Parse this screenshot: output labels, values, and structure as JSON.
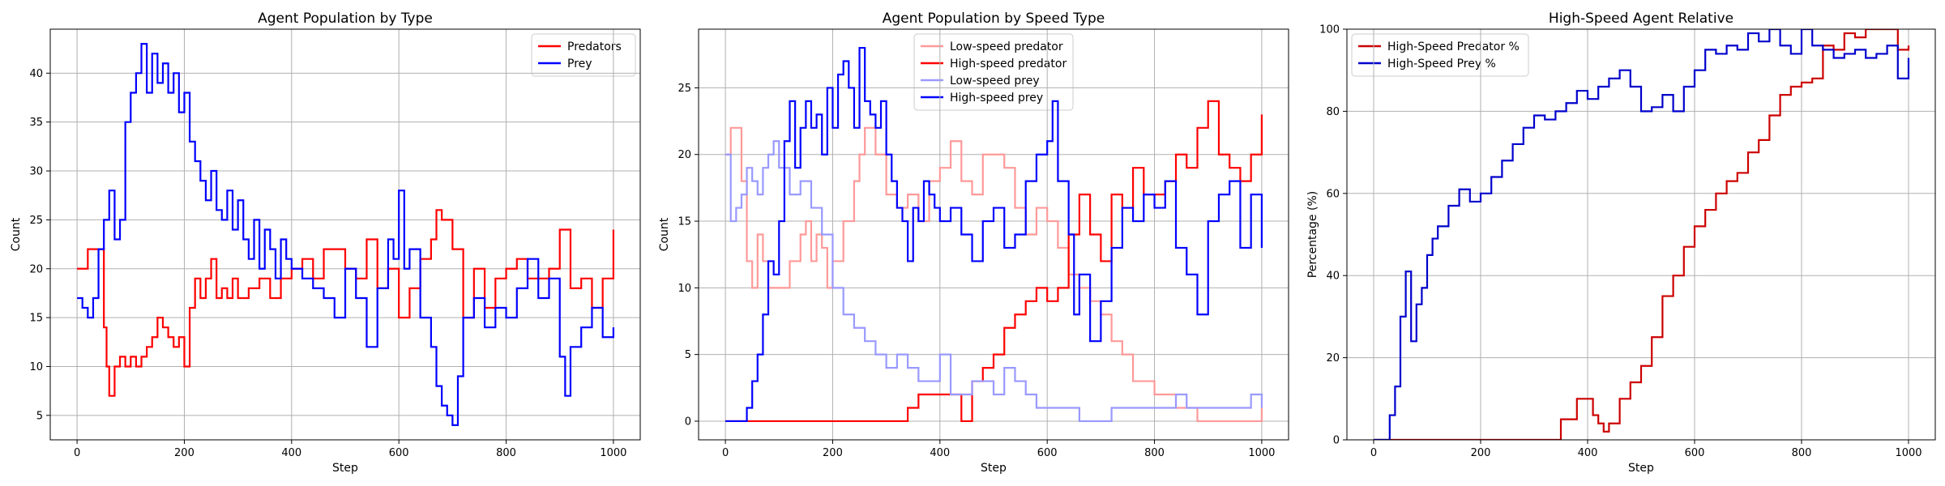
{
  "chart_data": [
    {
      "type": "line",
      "title": "Agent Population by Type",
      "xlabel": "Step",
      "ylabel": "Count",
      "xlim": [
        -50,
        1050
      ],
      "ylim": [
        2.5,
        44.5
      ],
      "xticks": [
        0,
        200,
        400,
        600,
        800,
        1000
      ],
      "yticks": [
        5,
        10,
        15,
        20,
        25,
        30,
        35,
        40
      ],
      "grid": true,
      "legend_position": "top-right",
      "series": [
        {
          "name": "Predators",
          "color": "#ff0000",
          "x": [
            0,
            20,
            40,
            50,
            55,
            60,
            70,
            80,
            90,
            100,
            110,
            120,
            130,
            140,
            150,
            160,
            170,
            180,
            190,
            200,
            210,
            220,
            230,
            240,
            250,
            260,
            270,
            280,
            290,
            300,
            320,
            340,
            360,
            380,
            400,
            420,
            440,
            460,
            480,
            500,
            520,
            540,
            560,
            580,
            600,
            620,
            640,
            660,
            670,
            680,
            700,
            720,
            740,
            760,
            780,
            800,
            820,
            840,
            860,
            880,
            900,
            920,
            940,
            960,
            980,
            1000
          ],
          "y": [
            20,
            22,
            22,
            14,
            10,
            7,
            10,
            11,
            10,
            11,
            10,
            11,
            12,
            13,
            15,
            14,
            13,
            12,
            13,
            10,
            16,
            19,
            17,
            19,
            21,
            17,
            18,
            17,
            19,
            17,
            18,
            19,
            17,
            19,
            20,
            21,
            19,
            22,
            22,
            20,
            19,
            23,
            18,
            20,
            15,
            18,
            21,
            23,
            26,
            25,
            22,
            15,
            20,
            16,
            19,
            20,
            21,
            19,
            19,
            20,
            24,
            18,
            19,
            16,
            19,
            24
          ]
        },
        {
          "name": "Prey",
          "color": "#0000ff",
          "x": [
            0,
            10,
            20,
            30,
            40,
            50,
            60,
            70,
            80,
            90,
            100,
            110,
            120,
            130,
            140,
            150,
            160,
            170,
            180,
            190,
            200,
            210,
            220,
            230,
            240,
            250,
            260,
            270,
            280,
            290,
            300,
            310,
            320,
            330,
            340,
            350,
            360,
            370,
            380,
            390,
            400,
            420,
            440,
            460,
            480,
            500,
            520,
            540,
            560,
            580,
            590,
            600,
            610,
            620,
            640,
            660,
            670,
            680,
            690,
            700,
            710,
            720,
            740,
            760,
            780,
            800,
            820,
            840,
            860,
            880,
            900,
            910,
            920,
            940,
            960,
            980,
            1000
          ],
          "y": [
            17,
            16,
            15,
            17,
            22,
            25,
            28,
            23,
            25,
            35,
            38,
            40,
            43,
            38,
            42,
            39,
            41,
            38,
            40,
            36,
            38,
            33,
            31,
            29,
            27,
            30,
            26,
            25,
            28,
            24,
            27,
            23,
            21,
            25,
            20,
            24,
            22,
            19,
            23,
            21,
            20,
            19,
            18,
            17,
            15,
            20,
            17,
            12,
            18,
            23,
            21,
            28,
            20,
            22,
            15,
            12,
            8,
            6,
            5,
            4,
            9,
            15,
            17,
            14,
            16,
            15,
            18,
            21,
            17,
            19,
            11,
            7,
            12,
            14,
            16,
            13,
            14
          ]
        }
      ]
    },
    {
      "type": "line",
      "title": "Agent Population by Speed Type",
      "xlabel": "Step",
      "ylabel": "Count",
      "xlim": [
        -50,
        1050
      ],
      "ylim": [
        -1.4,
        29.4
      ],
      "xticks": [
        0,
        200,
        400,
        600,
        800,
        1000
      ],
      "yticks": [
        0,
        5,
        10,
        15,
        20,
        25
      ],
      "grid": true,
      "legend_position": "top-center",
      "series": [
        {
          "name": "Low-speed predator",
          "color": "#ff9999",
          "x": [
            0,
            10,
            20,
            30,
            40,
            50,
            60,
            70,
            80,
            100,
            120,
            140,
            150,
            160,
            170,
            180,
            190,
            200,
            220,
            240,
            250,
            260,
            280,
            300,
            320,
            340,
            360,
            380,
            400,
            420,
            440,
            460,
            480,
            500,
            520,
            540,
            560,
            580,
            600,
            620,
            640,
            660,
            680,
            700,
            720,
            740,
            760,
            780,
            800,
            820,
            840,
            860,
            880,
            900,
            950,
            1000
          ],
          "y": [
            20,
            22,
            22,
            18,
            12,
            10,
            14,
            12,
            10,
            10,
            12,
            14,
            15,
            12,
            14,
            13,
            10,
            12,
            15,
            18,
            20,
            22,
            20,
            17,
            16,
            17,
            15,
            18,
            19,
            21,
            18,
            17,
            20,
            20,
            19,
            16,
            14,
            16,
            15,
            13,
            11,
            10,
            9,
            8,
            6,
            5,
            3,
            3,
            2,
            2,
            1,
            1,
            0,
            0,
            0,
            1
          ]
        },
        {
          "name": "High-speed predator",
          "color": "#ff0000",
          "x": [
            0,
            300,
            320,
            340,
            360,
            380,
            400,
            420,
            440,
            460,
            480,
            500,
            520,
            540,
            560,
            580,
            600,
            620,
            640,
            660,
            680,
            700,
            720,
            740,
            760,
            780,
            800,
            820,
            840,
            860,
            880,
            900,
            920,
            940,
            960,
            980,
            1000
          ],
          "y": [
            0,
            0,
            0,
            1,
            2,
            2,
            2,
            2,
            0,
            3,
            4,
            5,
            7,
            8,
            9,
            10,
            9,
            10,
            14,
            17,
            14,
            12,
            17,
            16,
            19,
            17,
            17,
            18,
            20,
            19,
            22,
            24,
            20,
            19,
            18,
            20,
            23
          ]
        },
        {
          "name": "Low-speed prey",
          "color": "#9999ff",
          "x": [
            0,
            10,
            20,
            30,
            40,
            50,
            60,
            70,
            80,
            90,
            100,
            120,
            140,
            160,
            180,
            200,
            220,
            240,
            260,
            280,
            300,
            320,
            340,
            360,
            380,
            400,
            420,
            440,
            460,
            480,
            500,
            520,
            540,
            560,
            580,
            600,
            620,
            640,
            660,
            680,
            700,
            720,
            740,
            760,
            780,
            800,
            820,
            840,
            860,
            880,
            900,
            920,
            940,
            960,
            980,
            1000
          ],
          "y": [
            20,
            15,
            16,
            17,
            19,
            18,
            17,
            19,
            20,
            21,
            19,
            17,
            18,
            16,
            14,
            10,
            8,
            7,
            6,
            5,
            4,
            5,
            4,
            3,
            3,
            5,
            2,
            2,
            3,
            3,
            2,
            4,
            3,
            2,
            1,
            1,
            1,
            1,
            0,
            0,
            0,
            1,
            1,
            1,
            1,
            1,
            1,
            2,
            1,
            1,
            1,
            1,
            1,
            1,
            2,
            1
          ]
        },
        {
          "name": "High-speed prey",
          "color": "#0000ff",
          "x": [
            0,
            20,
            40,
            50,
            60,
            70,
            80,
            90,
            100,
            110,
            120,
            130,
            140,
            150,
            160,
            170,
            180,
            190,
            200,
            210,
            220,
            230,
            240,
            250,
            260,
            270,
            280,
            290,
            300,
            310,
            320,
            330,
            340,
            350,
            360,
            370,
            380,
            390,
            400,
            420,
            440,
            460,
            480,
            500,
            520,
            540,
            560,
            580,
            600,
            610,
            620,
            640,
            650,
            660,
            680,
            700,
            720,
            740,
            760,
            780,
            800,
            820,
            840,
            860,
            880,
            900,
            920,
            940,
            960,
            980,
            1000
          ],
          "y": [
            0,
            0,
            1,
            3,
            5,
            8,
            12,
            11,
            15,
            21,
            24,
            19,
            22,
            24,
            22,
            23,
            20,
            25,
            22,
            26,
            27,
            25,
            22,
            28,
            24,
            23,
            22,
            24,
            20,
            18,
            16,
            15,
            12,
            16,
            15,
            18,
            17,
            16,
            15,
            16,
            14,
            12,
            15,
            16,
            13,
            14,
            18,
            20,
            21,
            24,
            18,
            14,
            8,
            11,
            6,
            9,
            13,
            16,
            15,
            17,
            16,
            18,
            13,
            11,
            8,
            15,
            17,
            18,
            13,
            17,
            13
          ]
        }
      ]
    },
    {
      "type": "line",
      "title": "High-Speed Agent Relative",
      "xlabel": "Step",
      "ylabel": "Percentage (%)",
      "xlim": [
        -50,
        1050
      ],
      "ylim": [
        0,
        100
      ],
      "xticks": [
        0,
        200,
        400,
        600,
        800,
        1000
      ],
      "yticks": [
        0,
        20,
        40,
        60,
        80,
        100
      ],
      "grid": true,
      "legend_position": "top-left",
      "series": [
        {
          "name": "High-Speed Predator %",
          "color": "#cc0000",
          "x": [
            0,
            20,
            100,
            200,
            300,
            340,
            350,
            360,
            380,
            400,
            410,
            420,
            430,
            440,
            460,
            480,
            500,
            520,
            540,
            560,
            580,
            600,
            620,
            640,
            660,
            680,
            700,
            720,
            740,
            760,
            780,
            800,
            820,
            840,
            860,
            880,
            900,
            920,
            940,
            960,
            980,
            1000
          ],
          "y": [
            0,
            0,
            0,
            0,
            0,
            0,
            5,
            5,
            10,
            10,
            6,
            4,
            2,
            4,
            10,
            14,
            18,
            25,
            35,
            40,
            47,
            52,
            56,
            60,
            63,
            65,
            70,
            73,
            79,
            84,
            86,
            87,
            88,
            96,
            95,
            99,
            98,
            100,
            100,
            100,
            95,
            96
          ]
        },
        {
          "name": "High-Speed Prey %",
          "color": "#0000cc",
          "x": [
            0,
            20,
            30,
            40,
            50,
            60,
            70,
            80,
            90,
            100,
            110,
            120,
            140,
            160,
            180,
            200,
            220,
            240,
            260,
            280,
            300,
            320,
            340,
            360,
            380,
            400,
            420,
            440,
            460,
            480,
            500,
            520,
            540,
            560,
            580,
            600,
            620,
            640,
            660,
            680,
            700,
            720,
            740,
            760,
            780,
            800,
            820,
            840,
            860,
            880,
            900,
            920,
            940,
            960,
            980,
            1000
          ],
          "y": [
            0,
            0,
            6,
            13,
            30,
            41,
            24,
            33,
            37,
            45,
            49,
            52,
            57,
            61,
            58,
            60,
            64,
            68,
            72,
            76,
            79,
            78,
            80,
            82,
            85,
            83,
            86,
            88,
            90,
            86,
            80,
            81,
            84,
            80,
            86,
            90,
            95,
            94,
            96,
            95,
            99,
            97,
            100,
            96,
            94,
            100,
            96,
            95,
            93,
            94,
            95,
            93,
            94,
            96,
            88,
            93
          ]
        }
      ]
    }
  ]
}
